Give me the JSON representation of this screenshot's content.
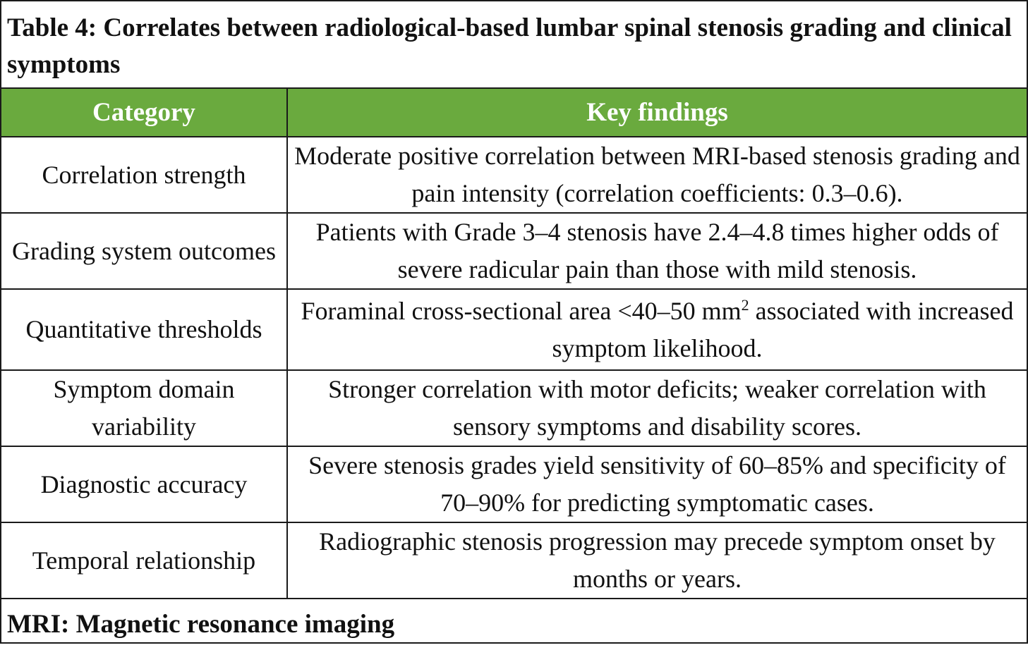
{
  "title": "Table 4: Correlates between radiological-based lumbar spinal stenosis grading and clinical symptoms",
  "header_color": "#6aaa3e",
  "columns": [
    "Category",
    "Key findings"
  ],
  "rows": [
    {
      "category": "Correlation strength",
      "finding": "Moderate positive correlation between MRI-based stenosis grading and pain intensity (correlation coefficients: 0.3–0.6)."
    },
    {
      "category": "Grading system outcomes",
      "finding": "Patients with Grade 3–4 stenosis have 2.4–4.8 times higher odds of severe radicular pain than those with mild stenosis."
    },
    {
      "category": "Quantitative thresholds",
      "finding_pre": "Foraminal cross-sectional area <40–50 mm",
      "finding_sup": "2",
      "finding_post": " associated with increased symptom likelihood."
    },
    {
      "category": "Symptom domain variability",
      "finding": "Stronger correlation with motor deficits; weaker correlation with sensory symptoms and disability scores."
    },
    {
      "category": "Diagnostic accuracy",
      "finding": "Severe stenosis grades yield sensitivity of 60–85% and specificity of 70–90% for predicting symptomatic cases."
    },
    {
      "category": "Temporal relationship",
      "finding": "Radiographic stenosis progression may precede symptom onset by months or years."
    }
  ],
  "footnote": "MRI: Magnetic resonance imaging"
}
